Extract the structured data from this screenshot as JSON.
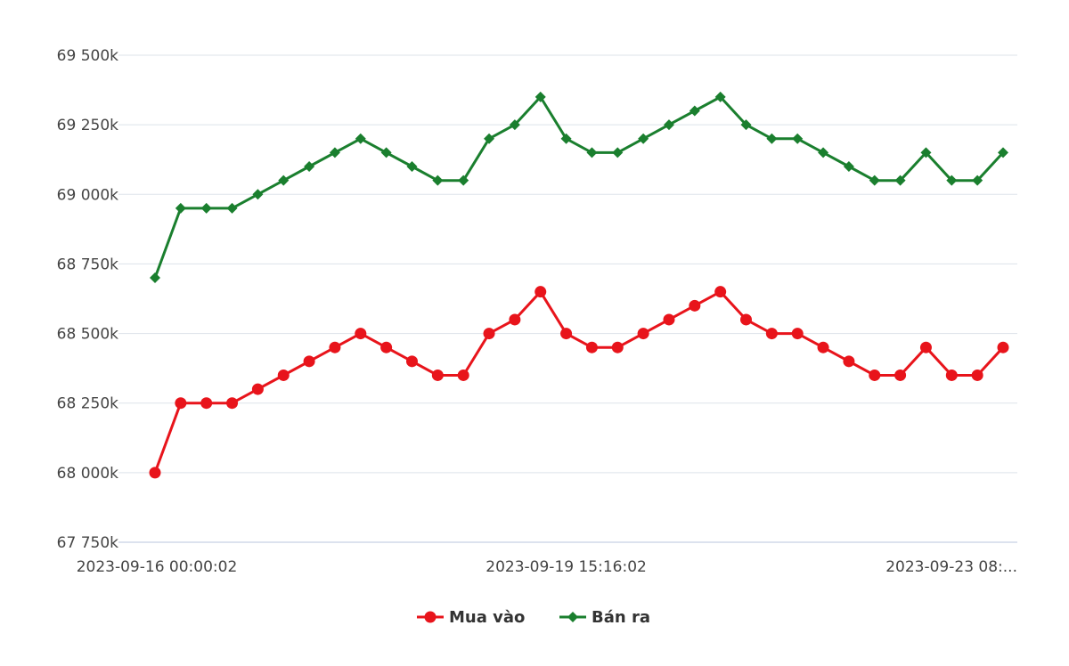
{
  "chart_data": {
    "type": "line",
    "title": "",
    "xlabel": "",
    "ylabel": "",
    "x_tick_labels": [
      "2023-09-16 00:00:02",
      "2023-09-19 15:16:02",
      "2023-09-23 08:..."
    ],
    "y_tick_labels": [
      "67 750k",
      "68 000k",
      "68 250k",
      "68 500k",
      "68 750k",
      "69 000k",
      "69 250k",
      "69 500k"
    ],
    "y_ticks": [
      67750,
      68000,
      68250,
      68500,
      68750,
      69000,
      69250,
      69500
    ],
    "ylim": [
      67750,
      69500
    ],
    "grid": true,
    "legend_position": "bottom-center",
    "series": [
      {
        "name": "Mua vào",
        "color": "#e8141b",
        "marker": "circle",
        "values": [
          68000,
          68250,
          68250,
          68250,
          68300,
          68350,
          68400,
          68450,
          68500,
          68450,
          68400,
          68350,
          68350,
          68500,
          68550,
          68650,
          68500,
          68450,
          68450,
          68500,
          68550,
          68600,
          68650,
          68550,
          68500,
          68500,
          68450,
          68400,
          68350,
          68350,
          68450,
          68350,
          68350,
          68450
        ]
      },
      {
        "name": "Bán ra",
        "color": "#1a7f2e",
        "marker": "diamond",
        "values": [
          68700,
          68950,
          68950,
          68950,
          69000,
          69050,
          69100,
          69150,
          69200,
          69150,
          69100,
          69050,
          69050,
          69200,
          69250,
          69350,
          69200,
          69150,
          69150,
          69200,
          69250,
          69300,
          69350,
          69250,
          69200,
          69200,
          69150,
          69100,
          69050,
          69050,
          69150,
          69050,
          69050,
          69150
        ]
      }
    ]
  }
}
